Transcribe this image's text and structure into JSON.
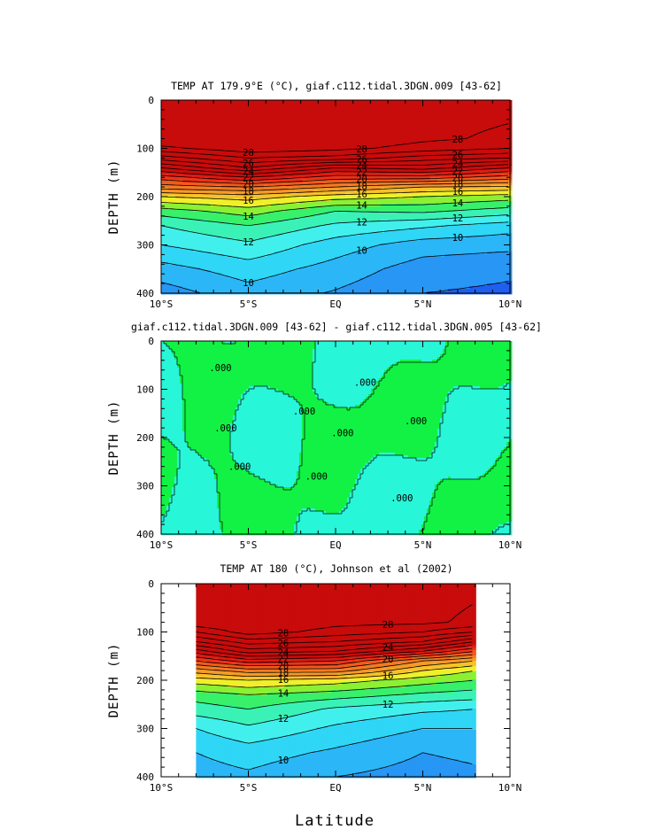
{
  "chart_data": [
    {
      "type": "contour",
      "title": "TEMP AT 179.9°E (°C), giaf.c112.tidal.3DGN.009 [43-62]",
      "ylabel": "DEPTH (m)",
      "xlim": [
        -10,
        10
      ],
      "ylim": [
        400,
        0
      ],
      "x_ticks": [
        "10°S",
        "5°S",
        "EQ",
        "5°N",
        "10°N"
      ],
      "y_ticks": [
        "0",
        "100",
        "200",
        "300",
        "400"
      ],
      "data_extent": [
        -10,
        10
      ],
      "profile_depths": [
        0,
        80,
        100,
        120,
        140,
        160,
        180,
        200,
        230,
        260,
        300,
        350,
        400
      ],
      "profile_temps": {
        "-10": [
          29.3,
          28.9,
          27.7,
          25.5,
          23.0,
          20.5,
          18.5,
          16.0,
          13.5,
          12.0,
          11.0,
          9.6,
          8.5
        ],
        "-5": [
          29.5,
          29.3,
          28.7,
          27.0,
          25.0,
          22.0,
          19.0,
          16.5,
          14.5,
          13.0,
          11.8,
          10.5,
          9.6
        ],
        "0": [
          28.9,
          28.8,
          28.3,
          26.6,
          23.0,
          20.5,
          18.0,
          15.5,
          13.0,
          11.8,
          10.5,
          9.6,
          8.9
        ],
        "5": [
          28.4,
          28.2,
          27.6,
          25.5,
          23.5,
          20.5,
          17.0,
          15.0,
          13.2,
          11.2,
          9.5,
          8.5,
          8.0
        ],
        "10": [
          28.3,
          27.8,
          27.0,
          25.0,
          22.0,
          19.5,
          16.8,
          14.5,
          12.5,
          10.5,
          9.3,
          8.2,
          7.8
        ]
      },
      "contour_labels": [
        "28",
        "26",
        "24",
        "22",
        "20",
        "18",
        "16",
        "14",
        "12",
        "10"
      ],
      "palette": [
        "#7a1fd6",
        "#1f20f0",
        "#1e5ef0",
        "#2796f4",
        "#2bb6f7",
        "#2fd6f6",
        "#41f0ec",
        "#3af2b6",
        "#38f06a",
        "#8cf033",
        "#f0f02a",
        "#f7c12a",
        "#f59a27",
        "#f37a22",
        "#f15a1c",
        "#ef3218",
        "#e01a12",
        "#c80b0b"
      ]
    },
    {
      "type": "contour",
      "title": "giaf.c112.tidal.3DGN.009 [43-62] - giaf.c112.tidal.3DGN.005 [43-62]",
      "ylabel": "DEPTH (m)",
      "xlim": [
        -10,
        10
      ],
      "ylim": [
        400,
        0
      ],
      "x_ticks": [
        "10°S",
        "5°S",
        "EQ",
        "5°N",
        "10°N"
      ],
      "y_ticks": [
        "0",
        "100",
        "200",
        "300",
        "400"
      ],
      "contour_labels": [
        ".000",
        ".000",
        ".000",
        ".000",
        ".000",
        ".000",
        ".000",
        ".000",
        ".000"
      ],
      "colors": {
        "negative": "#11f244",
        "positive": "#27f6d8"
      }
    },
    {
      "type": "contour",
      "title": "TEMP AT 180 (°C), Johnson et al (2002)",
      "ylabel": "DEPTH (m)",
      "xlabel": "Latitude",
      "xlim": [
        -10,
        10
      ],
      "ylim": [
        400,
        0
      ],
      "x_ticks": [
        "10°S",
        "5°S",
        "EQ",
        "5°N",
        "10°N"
      ],
      "y_ticks": [
        "0",
        "100",
        "200",
        "300",
        "400"
      ],
      "data_extent": [
        -8,
        8
      ],
      "profile_depths": [
        0,
        80,
        100,
        120,
        140,
        160,
        180,
        200,
        230,
        260,
        300,
        350,
        400
      ],
      "profile_temps": {
        "-8": [
          29.3,
          28.8,
          27.0,
          25.0,
          22.5,
          20.0,
          17.5,
          15.5,
          13.5,
          12.5,
          11.0,
          10.0,
          9.5
        ],
        "-5": [
          29.4,
          29.1,
          28.5,
          26.5,
          24.5,
          21.5,
          18.5,
          16.0,
          14.0,
          13.0,
          11.8,
          10.5,
          9.8
        ],
        "0": [
          28.6,
          28.3,
          27.6,
          26.0,
          24.0,
          21.0,
          18.5,
          15.5,
          13.5,
          11.8,
          10.8,
          9.8,
          9.0
        ],
        "5": [
          28.4,
          28.2,
          27.0,
          25.0,
          22.0,
          18.0,
          16.0,
          14.5,
          12.8,
          11.2,
          10.0,
          9.0,
          8.6
        ],
        "8": [
          28.2,
          27.8,
          26.0,
          23.0,
          20.0,
          17.0,
          15.0,
          14.0,
          12.5,
          11.0,
          10.0,
          9.2,
          8.8
        ]
      },
      "contour_labels": [
        "28",
        "26",
        "24",
        "22",
        "20",
        "18",
        "16",
        "14",
        "12",
        "10"
      ],
      "palette": [
        "#7a1fd6",
        "#1f20f0",
        "#1e5ef0",
        "#2796f4",
        "#2bb6f7",
        "#2fd6f6",
        "#41f0ec",
        "#3af2b6",
        "#38f06a",
        "#8cf033",
        "#f0f02a",
        "#f7c12a",
        "#f59a27",
        "#f37a22",
        "#f15a1c",
        "#ef3218",
        "#e01a12",
        "#c80b0b"
      ]
    }
  ]
}
